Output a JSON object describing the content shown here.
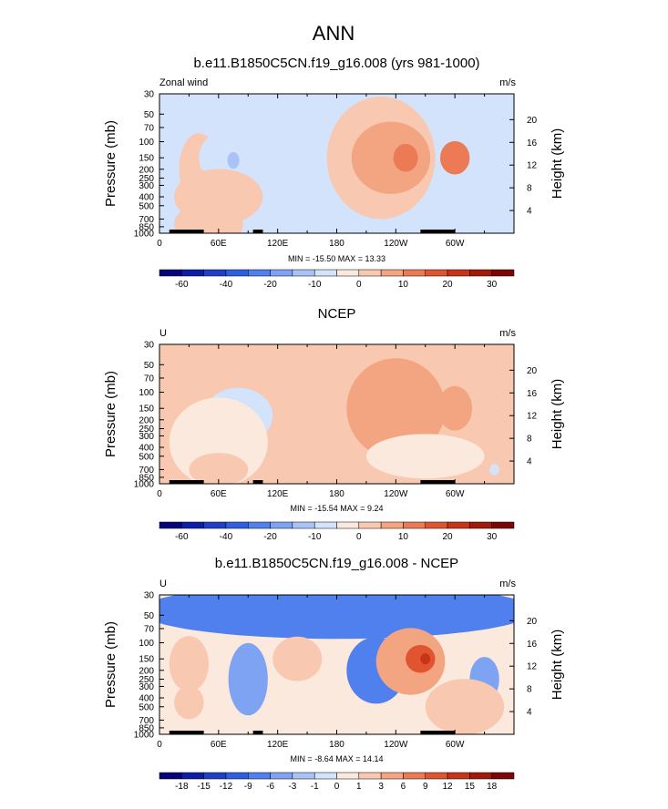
{
  "page": {
    "main_title": "ANN"
  },
  "colors": {
    "wind_colorbar": [
      "#05057a",
      "#0a1ea8",
      "#1f3fc8",
      "#2f5fe0",
      "#4f80ee",
      "#7fa3f3",
      "#a9c3f8",
      "#d2e3fb",
      "#fce9dd",
      "#f8c8b0",
      "#f3a582",
      "#ec7a55",
      "#e0552f",
      "#c83418",
      "#a21a0a",
      "#7a0606"
    ],
    "diff_colorbar": [
      "#05057a",
      "#0a1ea8",
      "#1f3fc8",
      "#2f5fe0",
      "#4f80ee",
      "#7fa3f3",
      "#a9c3f8",
      "#d2e3fb",
      "#fce9dd",
      "#f8c8b0",
      "#f3a582",
      "#ec7a55",
      "#e0552f",
      "#c83418",
      "#a21a0a",
      "#7a0606"
    ]
  },
  "chart_data": [
    {
      "type": "heatmap",
      "title": "b.e11.B1850C5CN.f19_g16.008 (yrs 981-1000)",
      "left_label": "Zonal wind",
      "units": "m/s",
      "ylabel": "Pressure (mb)",
      "y2label": "Height (km)",
      "x_ticks": [
        "0",
        "60E",
        "120E",
        "180",
        "120W",
        "60W"
      ],
      "y_ticks": [
        "30",
        "50",
        "70",
        "100",
        "150",
        "200",
        "250",
        "300",
        "400",
        "500",
        "700",
        "850",
        "1000"
      ],
      "height_ticks": [
        "20",
        "16",
        "12",
        "8",
        "4"
      ],
      "stats": "MIN = -15.50  MAX =  13.33",
      "colorbar_labels": [
        "-60",
        "-40",
        "-20",
        "-10",
        "0",
        "10",
        "20",
        "30"
      ],
      "background_value": -5,
      "features": [
        {
          "lon": 40,
          "p": 200,
          "value": 3,
          "w": 40,
          "h": 1.3
        },
        {
          "lon": 70,
          "p": 150,
          "value": -8,
          "w": 60,
          "h": 1.0
        },
        {
          "lon": 75,
          "p": 160,
          "value": -13,
          "w": 12,
          "h": 0.3
        },
        {
          "lon": 225,
          "p": 150,
          "value": 3,
          "w": 110,
          "h": 2.2
        },
        {
          "lon": 235,
          "p": 150,
          "value": 8,
          "w": 80,
          "h": 1.3
        },
        {
          "lon": 250,
          "p": 150,
          "value": 13,
          "w": 25,
          "h": 0.5
        },
        {
          "lon": 300,
          "p": 150,
          "value": 12,
          "w": 30,
          "h": 0.6
        },
        {
          "lon": 60,
          "p": 400,
          "value": 3,
          "w": 90,
          "h": 1.0
        },
        {
          "lon": 50,
          "p": 800,
          "value": 5,
          "w": 70,
          "h": 0.8
        },
        {
          "lon": 260,
          "p": 900,
          "value": -8,
          "w": 20,
          "h": 0.3
        }
      ]
    },
    {
      "type": "heatmap",
      "title": "NCEP",
      "left_label": "U",
      "units": "m/s",
      "ylabel": "Pressure (mb)",
      "y2label": "Height (km)",
      "x_ticks": [
        "0",
        "60E",
        "120E",
        "180",
        "120W",
        "60W"
      ],
      "y_ticks": [
        "30",
        "50",
        "70",
        "100",
        "150",
        "200",
        "250",
        "300",
        "400",
        "500",
        "700",
        "850",
        "1000"
      ],
      "height_ticks": [
        "20",
        "16",
        "12",
        "8",
        "4"
      ],
      "stats": "MIN = -15.54  MAX =  9.24",
      "colorbar_labels": [
        "-60",
        "-40",
        "-20",
        "-10",
        "0",
        "10",
        "20",
        "30"
      ],
      "background_value": 2,
      "features": [
        {
          "lon": 80,
          "p": 180,
          "value": -8,
          "w": 70,
          "h": 1.0
        },
        {
          "lon": 80,
          "p": 180,
          "value": -13,
          "w": 20,
          "h": 0.3
        },
        {
          "lon": 60,
          "p": 350,
          "value": -3,
          "w": 100,
          "h": 1.6
        },
        {
          "lon": 240,
          "p": 150,
          "value": 6,
          "w": 100,
          "h": 1.8
        },
        {
          "lon": 225,
          "p": 160,
          "value": 8,
          "w": 40,
          "h": 0.9
        },
        {
          "lon": 300,
          "p": 150,
          "value": 8,
          "w": 35,
          "h": 0.8
        },
        {
          "lon": 270,
          "p": 500,
          "value": -3,
          "w": 120,
          "h": 0.8
        },
        {
          "lon": 60,
          "p": 700,
          "value": 5,
          "w": 60,
          "h": 0.6
        },
        {
          "lon": 340,
          "p": 700,
          "value": -8,
          "w": 10,
          "h": 0.2
        }
      ]
    },
    {
      "type": "heatmap",
      "title": "b.e11.B1850C5CN.f19_g16.008 - NCEP",
      "left_label": "U",
      "units": "m/s",
      "ylabel": "Pressure (mb)",
      "y2label": "Height (km)",
      "x_ticks": [
        "0",
        "60E",
        "120E",
        "180",
        "120W",
        "60W"
      ],
      "y_ticks": [
        "30",
        "50",
        "70",
        "100",
        "150",
        "200",
        "250",
        "300",
        "400",
        "500",
        "700",
        "850",
        "1000"
      ],
      "height_ticks": [
        "20",
        "16",
        "12",
        "8",
        "4"
      ],
      "stats": "MIN = -8.64  MAX =  14.14",
      "colorbar_labels": [
        "-18",
        "-15",
        "-12",
        "-9",
        "-6",
        "-3",
        "-1",
        "0",
        "1",
        "3",
        "6",
        "9",
        "12",
        "15",
        "18"
      ],
      "background_value": 0.5,
      "features": [
        {
          "lon": 180,
          "p": 45,
          "value": -7,
          "w": 400,
          "h": 1.0
        },
        {
          "lon": 30,
          "p": 170,
          "value": 3,
          "w": 40,
          "h": 1.0
        },
        {
          "lon": 140,
          "p": 150,
          "value": 3,
          "w": 50,
          "h": 0.8
        },
        {
          "lon": 220,
          "p": 200,
          "value": -6,
          "w": 60,
          "h": 1.2
        },
        {
          "lon": 90,
          "p": 250,
          "value": -3,
          "w": 40,
          "h": 1.3
        },
        {
          "lon": 255,
          "p": 160,
          "value": 6,
          "w": 70,
          "h": 1.2
        },
        {
          "lon": 265,
          "p": 150,
          "value": 12,
          "w": 30,
          "h": 0.5
        },
        {
          "lon": 270,
          "p": 150,
          "value": 15,
          "w": 10,
          "h": 0.2
        },
        {
          "lon": 330,
          "p": 250,
          "value": -3,
          "w": 30,
          "h": 0.8
        },
        {
          "lon": 30,
          "p": 450,
          "value": 3,
          "w": 30,
          "h": 0.6
        },
        {
          "lon": 310,
          "p": 500,
          "value": 3,
          "w": 80,
          "h": 1.0
        }
      ]
    }
  ]
}
